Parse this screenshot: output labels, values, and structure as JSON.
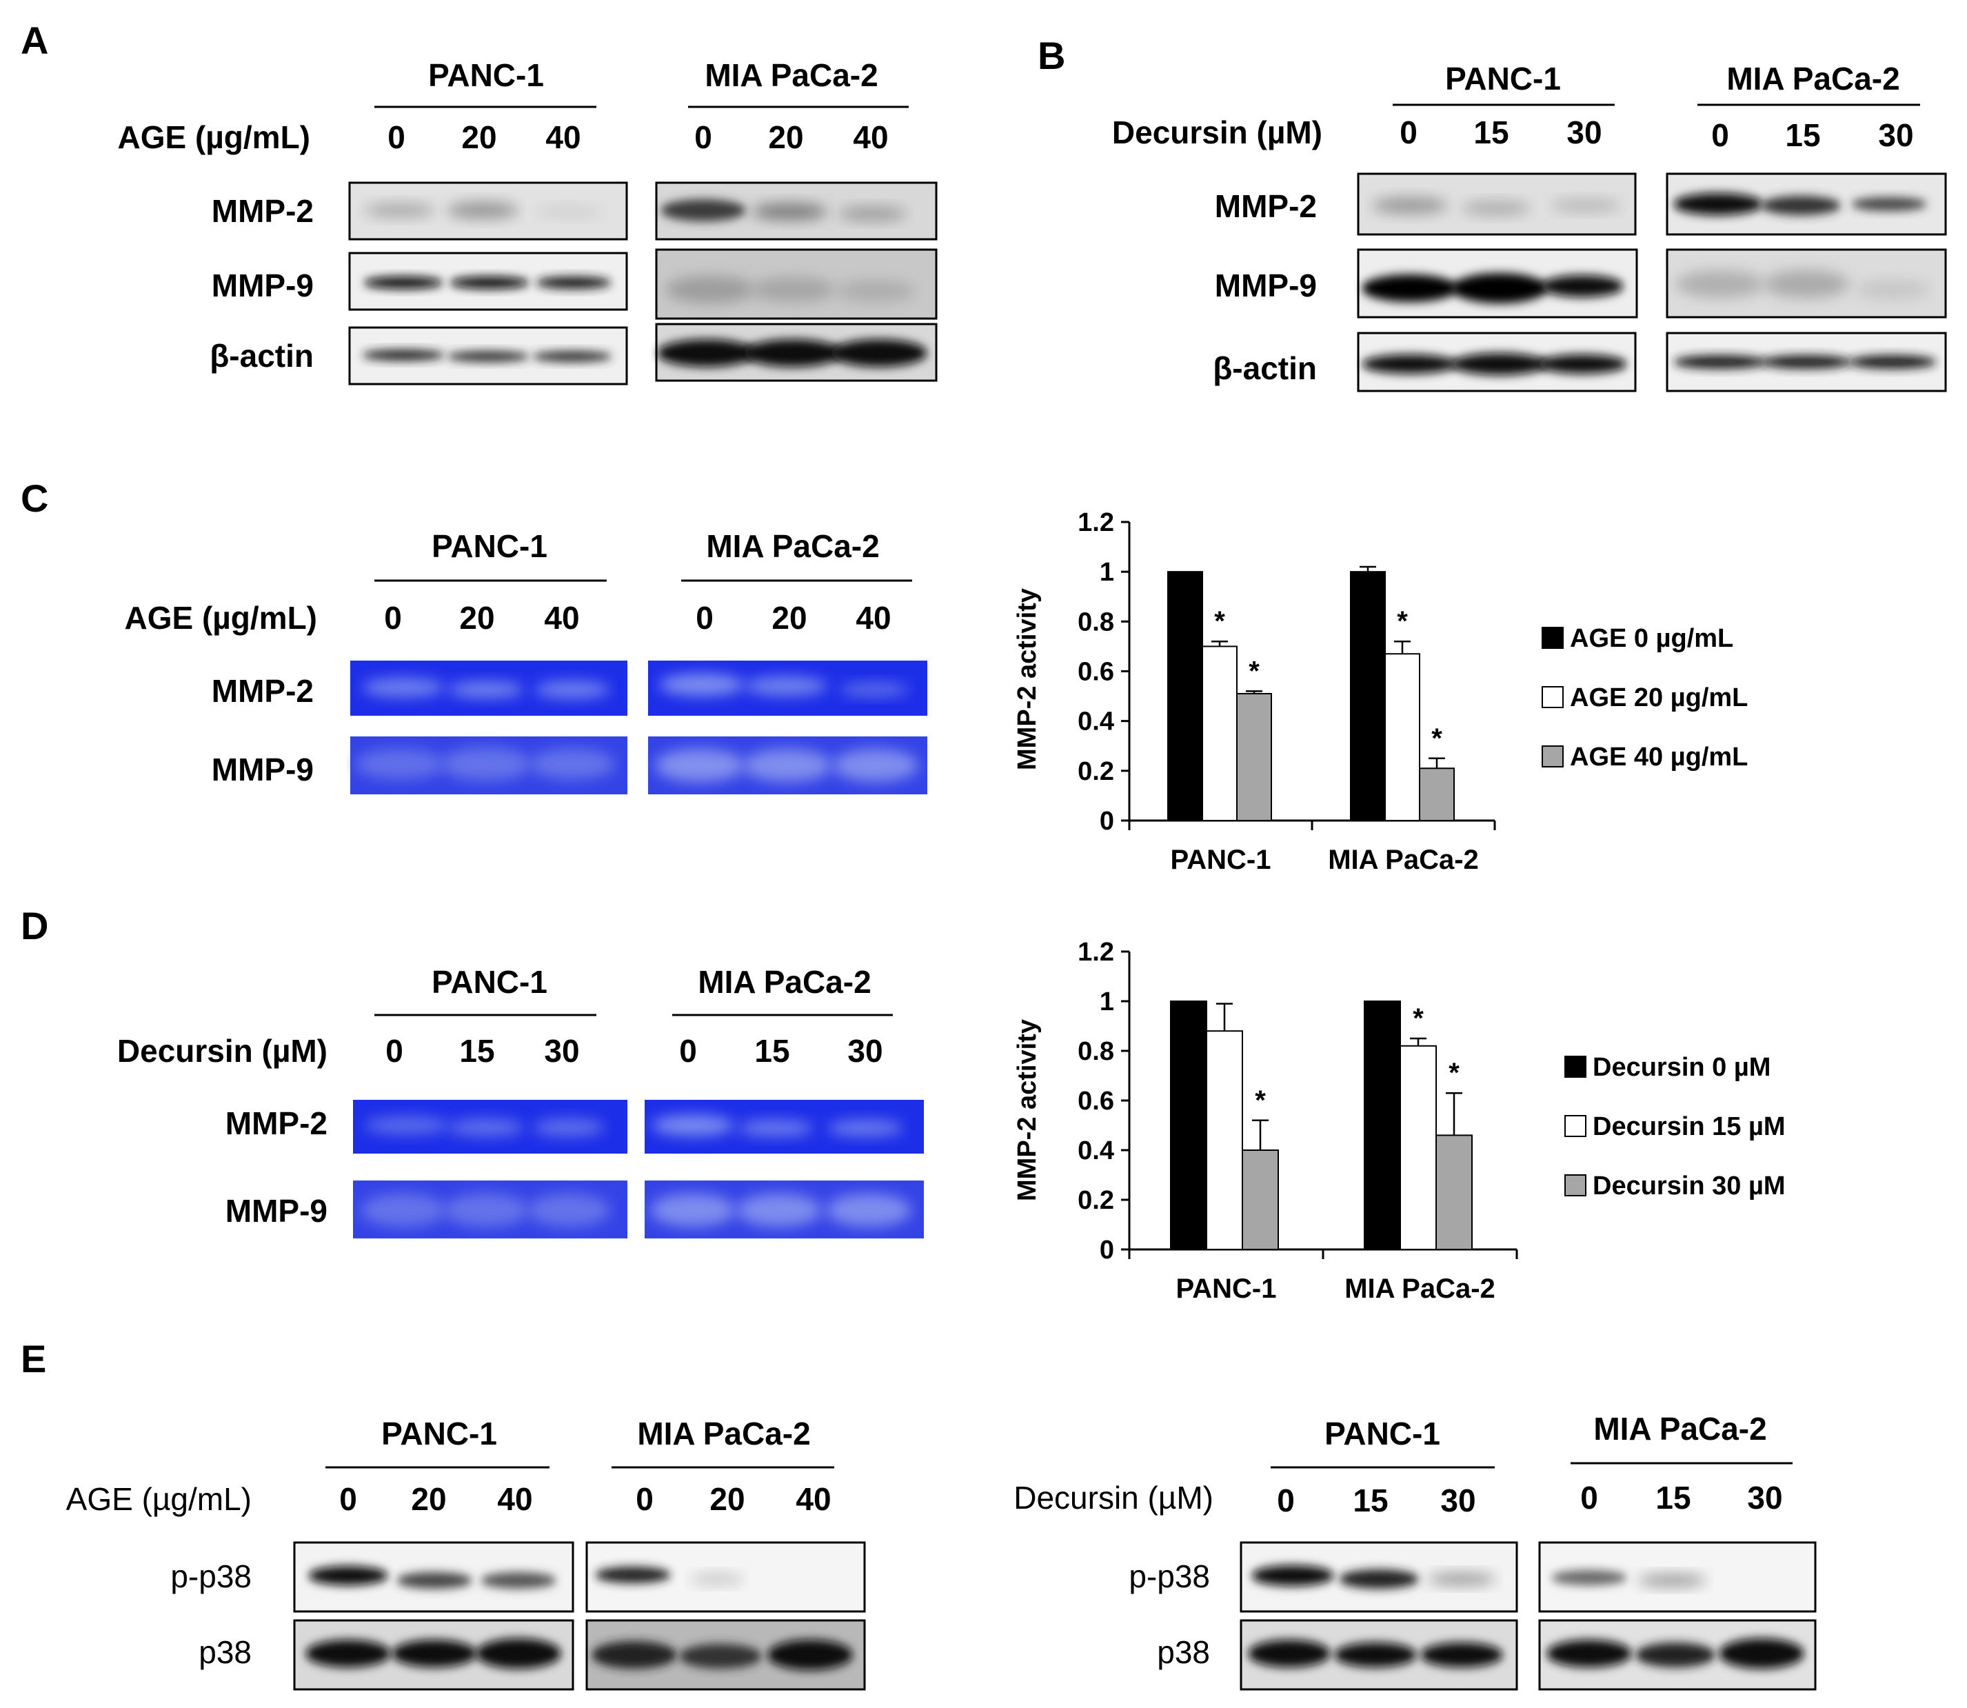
{
  "panels": {
    "A": {
      "letter": "A",
      "treatment_label": "AGE (µg/mL)",
      "groups": [
        {
          "name": "PANC-1",
          "doses": [
            "0",
            "20",
            "40"
          ]
        },
        {
          "name": "MIA PaCa-2",
          "doses": [
            "0",
            "20",
            "40"
          ]
        }
      ],
      "rows": [
        "MMP-2",
        "MMP-9",
        "β-actin"
      ]
    },
    "B": {
      "letter": "B",
      "treatment_label": "Decursin (µM)",
      "groups": [
        {
          "name": "PANC-1",
          "doses": [
            "0",
            "15",
            "30"
          ]
        },
        {
          "name": "MIA PaCa-2",
          "doses": [
            "0",
            "15",
            "30"
          ]
        }
      ],
      "rows": [
        "MMP-2",
        "MMP-9",
        "β-actin"
      ]
    },
    "C": {
      "letter": "C",
      "treatment_label": "AGE (µg/mL)",
      "groups": [
        {
          "name": "PANC-1",
          "doses": [
            "0",
            "20",
            "40"
          ]
        },
        {
          "name": "MIA PaCa-2",
          "doses": [
            "0",
            "20",
            "40"
          ]
        }
      ],
      "rows": [
        "MMP-2",
        "MMP-9"
      ]
    },
    "D": {
      "letter": "D",
      "treatment_label": "Decursin (µM)",
      "groups": [
        {
          "name": "PANC-1",
          "doses": [
            "0",
            "15",
            "30"
          ]
        },
        {
          "name": "MIA PaCa-2",
          "doses": [
            "0",
            "15",
            "30"
          ]
        }
      ],
      "rows": [
        "MMP-2",
        "MMP-9"
      ]
    },
    "E": {
      "letter": "E",
      "left": {
        "treatment_label": "AGE (µg/mL)",
        "groups": [
          {
            "name": "PANC-1",
            "doses": [
              "0",
              "20",
              "40"
            ]
          },
          {
            "name": "MIA PaCa-2",
            "doses": [
              "0",
              "20",
              "40"
            ]
          }
        ],
        "rows": [
          "p-p38",
          "p38"
        ]
      },
      "right": {
        "treatment_label": "Decursin (µM)",
        "groups": [
          {
            "name": "PANC-1",
            "doses": [
              "0",
              "15",
              "30"
            ]
          },
          {
            "name": "MIA PaCa-2",
            "doses": [
              "0",
              "15",
              "30"
            ]
          }
        ],
        "rows": [
          "p-p38",
          "p38"
        ]
      }
    }
  },
  "colors": {
    "series_0": "#000000",
    "series_1": "#ffffff",
    "series_2": "#a6a6a6",
    "zymogram_bg": "#1d2ee8",
    "zymogram_band": "#7d8ef0"
  },
  "chart_data": [
    {
      "type": "bar",
      "panel": "C",
      "ylabel": "MMP-2 activity",
      "ylim": [
        0,
        1.2
      ],
      "yticks": [
        "0",
        "0.2",
        "0.4",
        "0.6",
        "0.8",
        "1",
        "1.2"
      ],
      "categories": [
        "PANC-1",
        "MIA PaCa-2"
      ],
      "series": [
        {
          "name": "AGE 0 µg/mL",
          "values": [
            1.0,
            1.0
          ],
          "errors": [
            0.0,
            0.02
          ],
          "significant": [
            false,
            false
          ]
        },
        {
          "name": "AGE 20 µg/mL",
          "values": [
            0.7,
            0.67
          ],
          "errors": [
            0.02,
            0.05
          ],
          "significant": [
            true,
            true
          ]
        },
        {
          "name": "AGE 40 µg/mL",
          "values": [
            0.51,
            0.21
          ],
          "errors": [
            0.01,
            0.04
          ],
          "significant": [
            true,
            true
          ]
        }
      ],
      "significance_marker": "*",
      "legend": "right"
    },
    {
      "type": "bar",
      "panel": "D",
      "ylabel": "MMP-2 activity",
      "ylim": [
        0,
        1.2
      ],
      "yticks": [
        "0",
        "0.2",
        "0.4",
        "0.6",
        "0.8",
        "1",
        "1.2"
      ],
      "categories": [
        "PANC-1",
        "MIA PaCa-2"
      ],
      "series": [
        {
          "name": "Decursin 0 µM",
          "values": [
            1.0,
            1.0
          ],
          "errors": [
            0.0,
            0.0
          ],
          "significant": [
            false,
            false
          ]
        },
        {
          "name": "Decursin 15 µM",
          "values": [
            0.88,
            0.82
          ],
          "errors": [
            0.11,
            0.03
          ],
          "significant": [
            false,
            true
          ]
        },
        {
          "name": "Decursin 30 µM",
          "values": [
            0.4,
            0.46
          ],
          "errors": [
            0.12,
            0.17
          ],
          "significant": [
            true,
            true
          ]
        }
      ],
      "significance_marker": "*",
      "legend": "right"
    }
  ]
}
